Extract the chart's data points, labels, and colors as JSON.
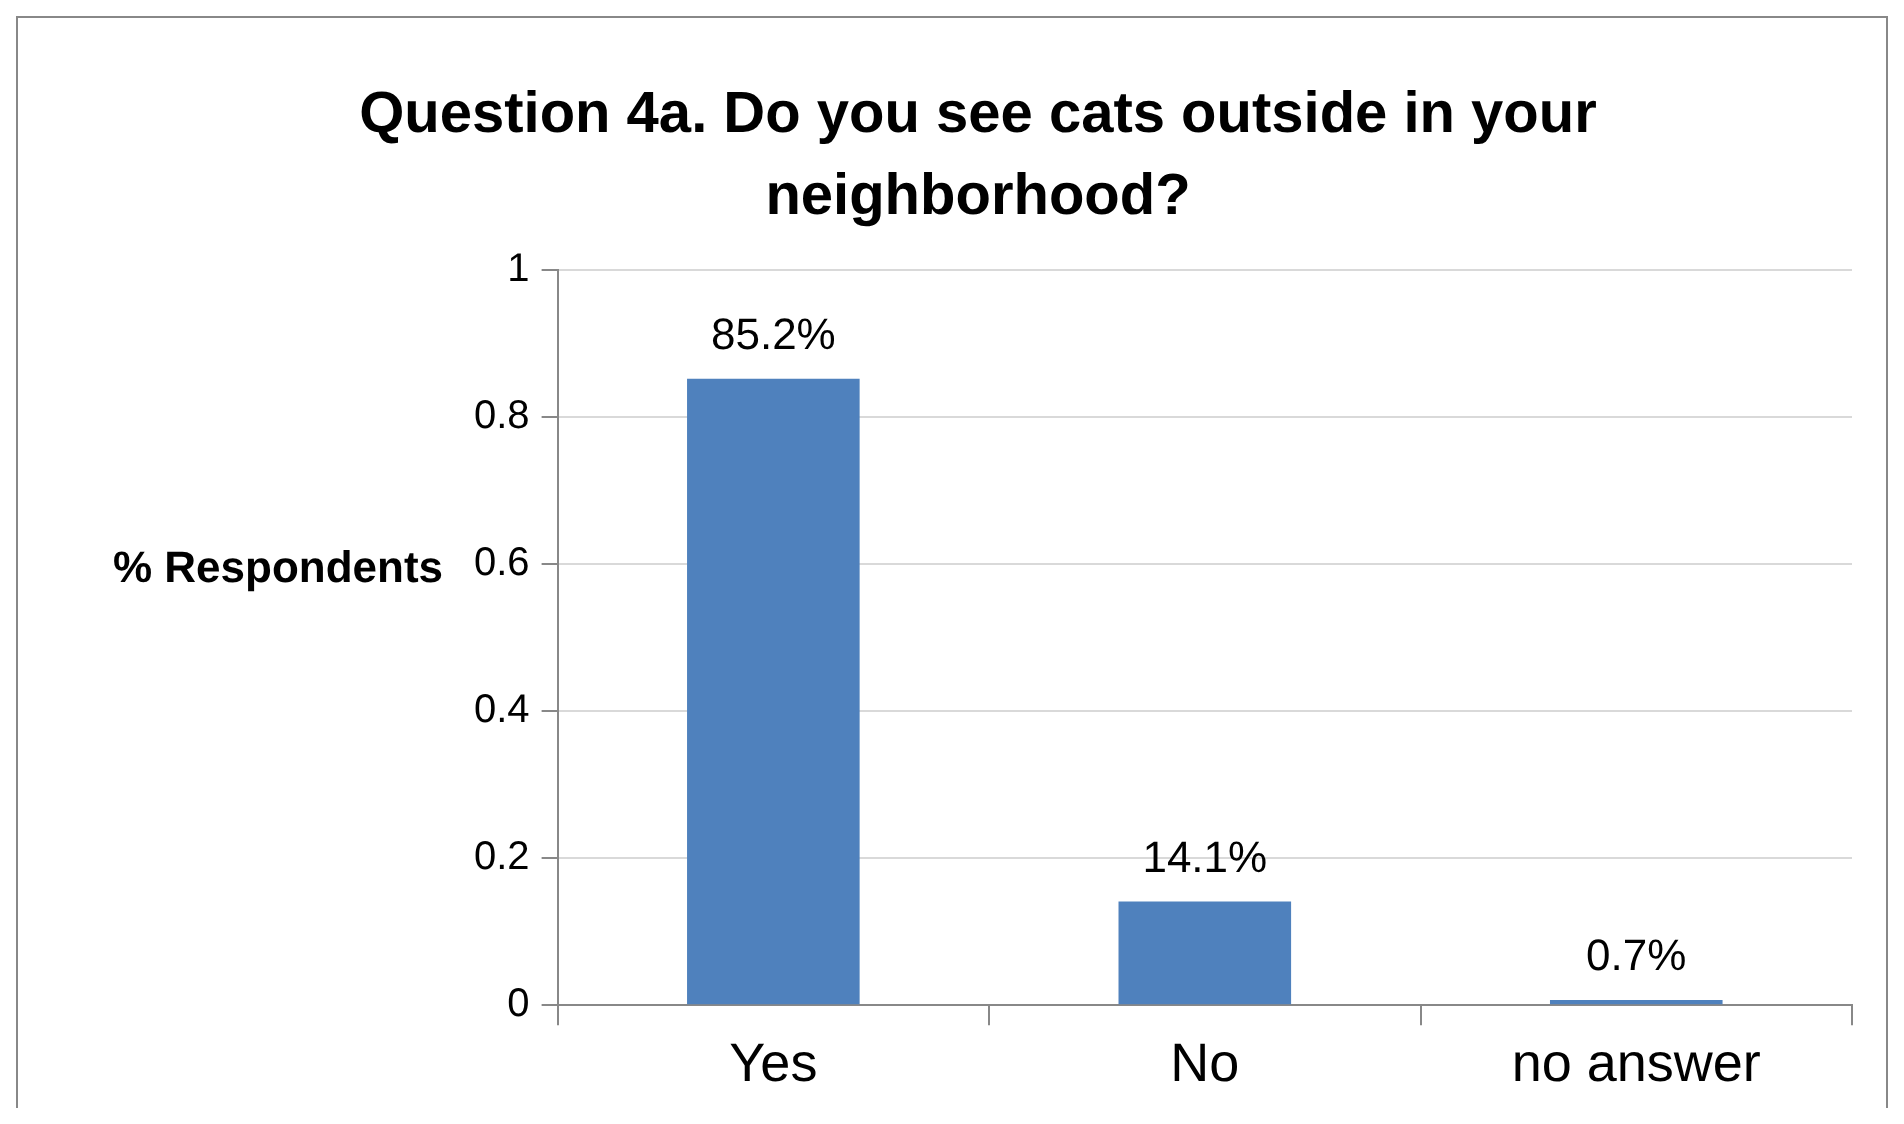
{
  "chart_data": {
    "type": "bar",
    "title": "Question 4a. Do you see cats outside in your neighborhood?",
    "ylabel": "% Respondents",
    "categories": [
      "Yes",
      "No",
      "no answer"
    ],
    "values": [
      0.852,
      0.141,
      0.007
    ],
    "value_labels": [
      "85.2%",
      "14.1%",
      "0.7%"
    ],
    "color": "#4f81bd",
    "ylim": [
      0,
      1
    ],
    "yticks": [
      0,
      0.2,
      0.4,
      0.6,
      0.8,
      1
    ],
    "grid": "y"
  }
}
